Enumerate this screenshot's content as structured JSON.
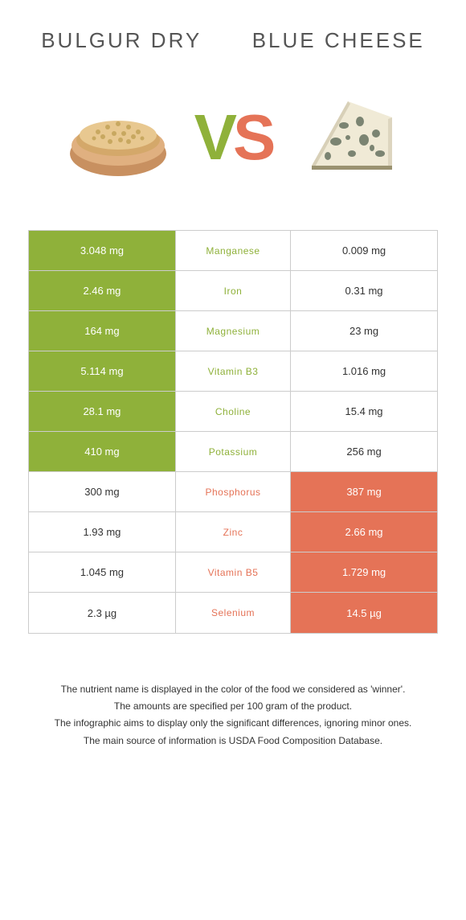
{
  "header": {
    "left_title": "Bulgur dry",
    "right_title": "Blue cheese",
    "vs_v": "V",
    "vs_s": "S"
  },
  "colors": {
    "green": "#8fb13a",
    "orange": "#e57357",
    "border": "#cccccc",
    "bg": "#ffffff",
    "title_text": "#555555"
  },
  "table": {
    "rows": [
      {
        "left": "3.048 mg",
        "label": "Manganese",
        "right": "0.009 mg",
        "winner": "left"
      },
      {
        "left": "2.46 mg",
        "label": "Iron",
        "right": "0.31 mg",
        "winner": "left"
      },
      {
        "left": "164 mg",
        "label": "Magnesium",
        "right": "23 mg",
        "winner": "left"
      },
      {
        "left": "5.114 mg",
        "label": "Vitamin B3",
        "right": "1.016 mg",
        "winner": "left"
      },
      {
        "left": "28.1 mg",
        "label": "Choline",
        "right": "15.4 mg",
        "winner": "left"
      },
      {
        "left": "410 mg",
        "label": "Potassium",
        "right": "256 mg",
        "winner": "left"
      },
      {
        "left": "300 mg",
        "label": "Phosphorus",
        "right": "387 mg",
        "winner": "right"
      },
      {
        "left": "1.93 mg",
        "label": "Zinc",
        "right": "2.66 mg",
        "winner": "right"
      },
      {
        "left": "1.045 mg",
        "label": "Vitamin B5",
        "right": "1.729 mg",
        "winner": "right"
      },
      {
        "left": "2.3 µg",
        "label": "Selenium",
        "right": "14.5 µg",
        "winner": "right"
      }
    ]
  },
  "footnotes": [
    "The nutrient name is displayed in the color of the food we considered as 'winner'.",
    "The amounts are specified per 100 gram of the product.",
    "The infographic aims to display only the significant differences, ignoring minor ones.",
    "The main source of information is USDA Food Composition Database."
  ]
}
